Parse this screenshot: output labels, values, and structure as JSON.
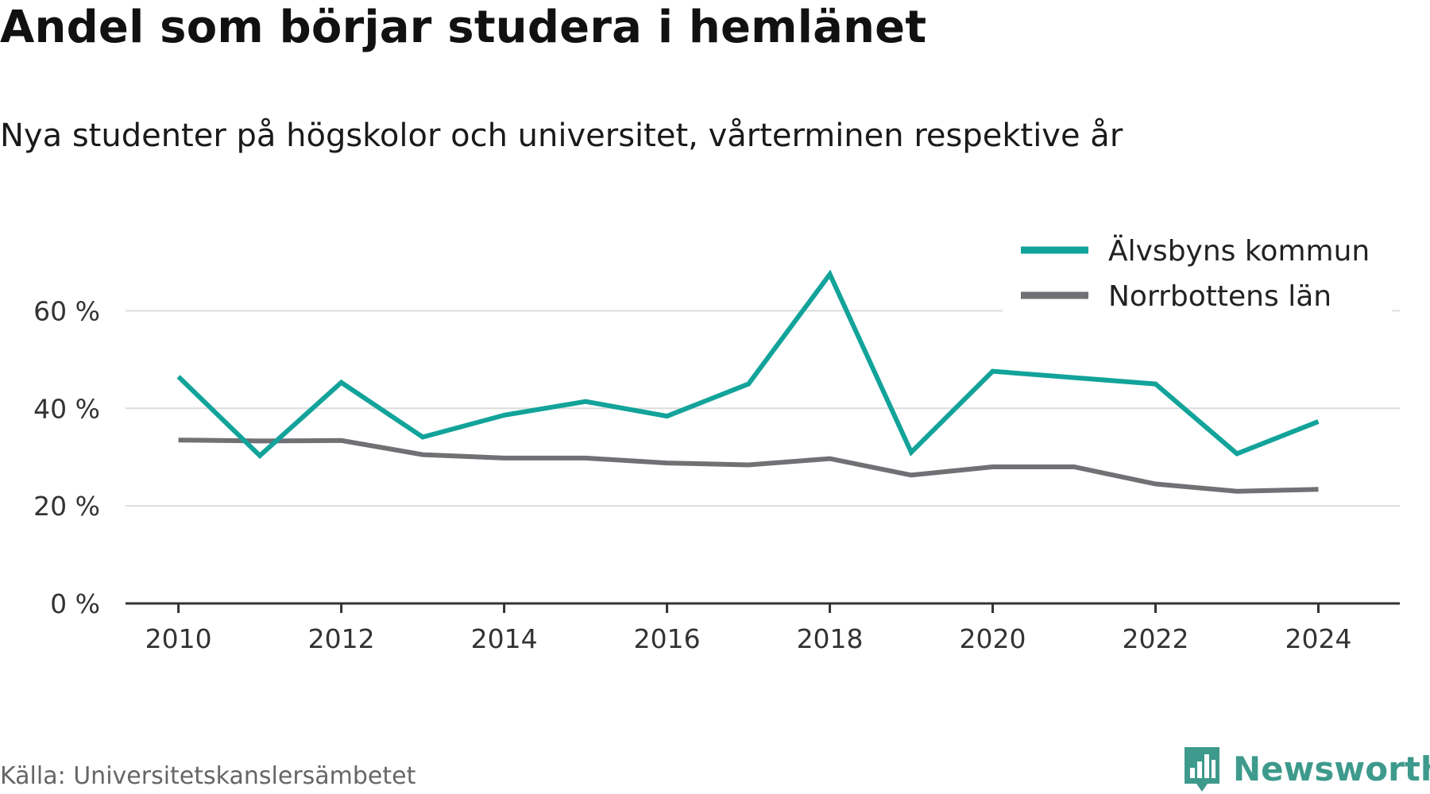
{
  "header": {
    "title": "Andel som börjar studera i hemlänet",
    "subtitle": "Nya studenter på högskolor och universitet, vårterminen respektive år"
  },
  "footer": {
    "source": "Källa: Universitetskanslersämbetet",
    "brand_name": "Newsworthy",
    "brand_icon": "bar-chart-icon"
  },
  "colors": {
    "series_alvsbyn": "#12A39A",
    "series_norrbotten": "#707075",
    "grid": "#dcdcdc",
    "axis": "#333333",
    "brand": "#3E9A8C"
  },
  "chart_data": {
    "type": "line",
    "title": "Andel som börjar studera i hemlänet",
    "subtitle": "Nya studenter på högskolor och universitet, vårterminen respektive år",
    "xlabel": "",
    "ylabel": "",
    "x": [
      2010,
      2011,
      2012,
      2013,
      2014,
      2015,
      2016,
      2017,
      2018,
      2019,
      2020,
      2021,
      2022,
      2023,
      2024
    ],
    "x_ticks": [
      2010,
      2012,
      2014,
      2016,
      2018,
      2020,
      2022,
      2024
    ],
    "x_tick_labels": [
      "2010",
      "2012",
      "2014",
      "2016",
      "2018",
      "2020",
      "2022",
      "2024"
    ],
    "xlim": [
      2009.35,
      2025.0
    ],
    "y_ticks": [
      0,
      20,
      40,
      60
    ],
    "y_tick_labels": [
      "0 %",
      "20 %",
      "40 %",
      "60 %"
    ],
    "ylim": [
      0,
      70
    ],
    "grid": true,
    "legend_position": "top-right",
    "series": [
      {
        "name": "Älvsbyns kommun",
        "color": "#12A39A",
        "values": [
          46.5,
          30.3,
          45.3,
          34.1,
          38.6,
          41.4,
          38.4,
          45.0,
          67.5,
          31.0,
          47.6,
          46.3,
          45.0,
          30.7,
          37.3
        ]
      },
      {
        "name": "Norrbottens län",
        "color": "#707075",
        "values": [
          33.5,
          33.3,
          33.4,
          30.5,
          29.8,
          29.8,
          28.8,
          28.4,
          29.7,
          26.3,
          28.0,
          28.0,
          24.5,
          23.0,
          23.4
        ]
      }
    ]
  }
}
